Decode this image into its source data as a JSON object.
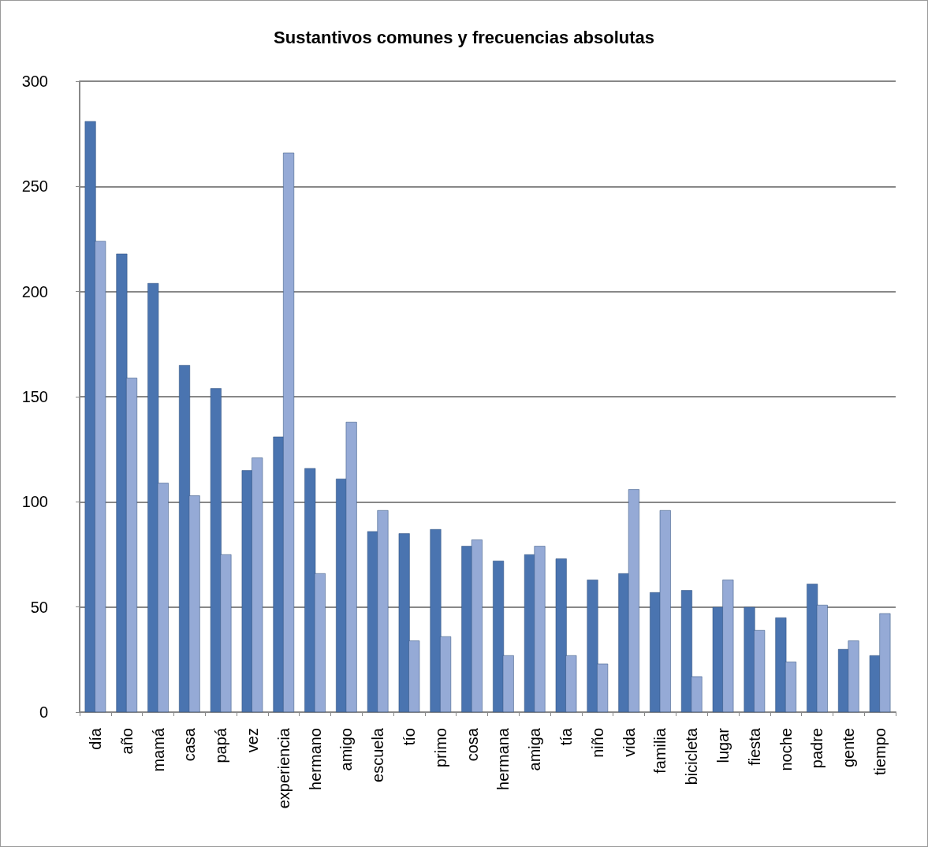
{
  "chart_data": {
    "type": "bar",
    "title": "Sustantivos comunes y frecuencias absolutas",
    "categories": [
      "día",
      "año",
      "mamá",
      "casa",
      "papá",
      "vez",
      "experiencia",
      "hermano",
      "amigo",
      "escuela",
      "tío",
      "primo",
      "cosa",
      "hermana",
      "amiga",
      "tía",
      "niño",
      "vida",
      "familia",
      "bicicleta",
      "lugar",
      "fiesta",
      "noche",
      "padre",
      "gente",
      "tiempo"
    ],
    "series": [
      {
        "color": "#4a74b0",
        "values": [
          281,
          218,
          204,
          165,
          154,
          115,
          131,
          116,
          111,
          86,
          85,
          87,
          79,
          72,
          75,
          73,
          63,
          66,
          57,
          58,
          50,
          50,
          45,
          61,
          30,
          27
        ]
      },
      {
        "color": "#95aad6",
        "values": [
          224,
          159,
          109,
          103,
          75,
          121,
          266,
          66,
          138,
          96,
          34,
          36,
          82,
          27,
          79,
          27,
          23,
          106,
          96,
          17,
          63,
          39,
          24,
          51,
          34,
          47
        ]
      }
    ],
    "ylim": [
      0,
      300
    ],
    "yticks": [
      0,
      50,
      100,
      150,
      200,
      250,
      300
    ],
    "grid": "y"
  }
}
